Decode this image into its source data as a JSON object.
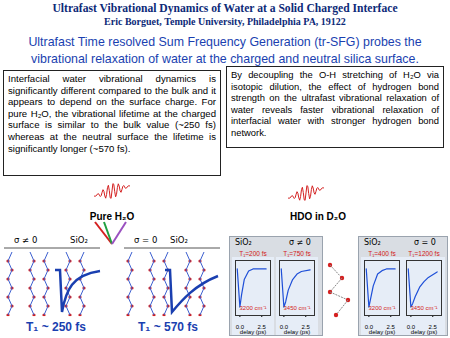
{
  "header": {
    "title": "Ultrafast Vibrational Dynamics of Water at a Solid Charged Interface",
    "author": "Eric Borguet, Temple University, Philadelphia PA, 19122"
  },
  "subtitle": "Ultrafast Time resolved Sum Frequency Generation (tr-SFG) probes the vibrational relaxation of water at the charged and neutral silica surface.",
  "left_panel": {
    "text": "Interfacial water vibrational dynamics is significantly different compared to the bulk and it appears to depend on the surface charge. For pure H₂O, the vibrational lifetime at the charged surface is similar to the bulk value (~250 fs) whereas at the neutral surface the lifetime is significantly longer (~570 fs).",
    "figure": {
      "label": "Pure H₂O",
      "surfaces": [
        {
          "charge": "σ ≠ 0",
          "substrate": "SiO₂",
          "lifetime": "T₁ ~ 250 fs"
        },
        {
          "charge": "σ = 0",
          "substrate": "SiO₂",
          "lifetime": "T₁ ~ 570 fs"
        }
      ]
    }
  },
  "right_panel": {
    "text": "By decoupling the O-H stretching of H₂O via isotopic dilution, the effect of hydrogen bond strength on the ultrafast vibrational relaxation of water reveals faster vibrational relaxation of interfacial water with stronger hydrogen bond network.",
    "figure": {
      "label": "HDO in D₂O",
      "groups": [
        {
          "substrate": "SiO₂",
          "charge": "σ ≠ 0"
        },
        {
          "substrate": "SiO₂",
          "charge": "σ = 0"
        }
      ]
    }
  },
  "chart_data": [
    {
      "type": "line",
      "title": "T₁=200 fs",
      "annotations": [
        "3200 cm⁻¹"
      ],
      "x_label": "delay (ps)",
      "x": [
        -0.3,
        0,
        0.2,
        0.5,
        1,
        1.5,
        2,
        3
      ],
      "values": [
        0,
        -0.9,
        -0.6,
        -0.25,
        -0.05,
        0,
        0,
        0
      ],
      "xlim": [
        -0.5,
        3.5
      ],
      "xticks": [
        {
          "value": 0,
          "label": "0.0"
        },
        {
          "value": 2.5,
          "label": "2.5"
        }
      ],
      "ylim": [
        -1.1,
        0.2
      ],
      "tick_labels": "x",
      "color": "#1e4fd8"
    },
    {
      "type": "line",
      "title": "T₁=750 fs",
      "annotations": [
        "3450 cm⁻¹"
      ],
      "x_label": "delay (ps)",
      "x": [
        -0.3,
        0,
        0.2,
        0.5,
        1,
        1.5,
        2,
        3
      ],
      "values": [
        0,
        -0.9,
        -0.78,
        -0.5,
        -0.25,
        -0.12,
        -0.06,
        -0.02
      ],
      "xlim": [
        -0.5,
        3.5
      ],
      "xticks": [
        {
          "value": 0,
          "label": "0.0"
        },
        {
          "value": 2.5,
          "label": "2.5"
        }
      ],
      "ylim": [
        -1.1,
        0.2
      ],
      "tick_labels": "x",
      "color": "#1e4fd8"
    },
    {
      "type": "line",
      "title": "T₁=400 fs",
      "annotations": [
        "3200 cm⁻¹"
      ],
      "x_label": "delay (ps)",
      "x": [
        -0.3,
        0,
        0.2,
        0.5,
        1,
        1.5,
        2,
        3
      ],
      "values": [
        0,
        -0.9,
        -0.7,
        -0.4,
        -0.12,
        -0.04,
        0,
        0
      ],
      "xlim": [
        -0.5,
        3.5
      ],
      "xticks": [
        {
          "value": 0,
          "label": "0.0"
        },
        {
          "value": 2.5,
          "label": "2.5"
        }
      ],
      "ylim": [
        -1.1,
        0.2
      ],
      "tick_labels": "x",
      "color": "#1e4fd8"
    },
    {
      "type": "line",
      "title": "T₁=1200 fs",
      "annotations": [
        "3450 cm⁻¹"
      ],
      "x_label": "delay (ps)",
      "x": [
        -0.3,
        0,
        0.2,
        0.5,
        1,
        1.5,
        2,
        3
      ],
      "values": [
        0,
        -0.9,
        -0.82,
        -0.65,
        -0.43,
        -0.3,
        -0.2,
        -0.07
      ],
      "xlim": [
        -0.5,
        3.5
      ],
      "xticks": [
        {
          "value": 0,
          "label": "0.0"
        },
        {
          "value": 2.5,
          "label": "2.5"
        }
      ],
      "ylim": [
        -1.1,
        0.2
      ],
      "tick_labels": "x",
      "color": "#1e4fd8"
    }
  ]
}
